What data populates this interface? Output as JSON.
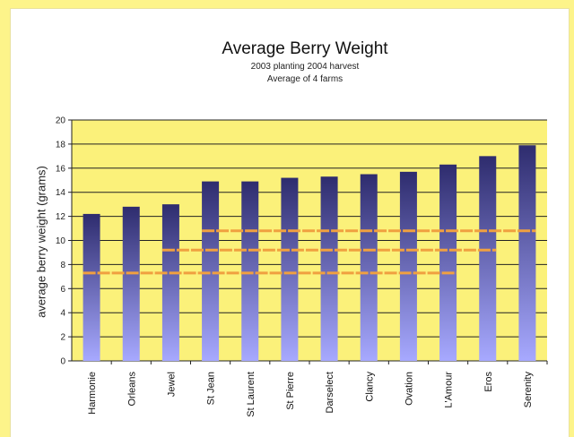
{
  "chart_data": {
    "type": "bar",
    "title": "Average Berry Weight",
    "subtitle": [
      "2003 planting 2004 harvest",
      "Average of 4 farms"
    ],
    "xlabel": "",
    "ylabel": "average berry weight (grams)",
    "ylim": [
      0,
      20
    ],
    "yticks": [
      0,
      2,
      4,
      6,
      8,
      10,
      12,
      14,
      16,
      18,
      20
    ],
    "grid": true,
    "categories": [
      "Harmonie",
      "Orleans",
      "Jewel",
      "St Jean",
      "St Laurent",
      "St Pierre",
      "Darselect",
      "Clancy",
      "Ovation",
      "L'Amour",
      "Eros",
      "Serenity"
    ],
    "values": [
      12.2,
      12.8,
      13.0,
      14.9,
      14.9,
      15.2,
      15.3,
      15.5,
      15.7,
      16.3,
      17.0,
      17.9
    ],
    "reference_lines": [
      {
        "y": 10.8,
        "from": "St Jean",
        "to": "Serenity"
      },
      {
        "y": 9.2,
        "from": "Jewel",
        "to": "Eros"
      },
      {
        "y": 7.3,
        "from": "Harmonie",
        "to": "L'Amour"
      }
    ],
    "colors": {
      "plot_bg": "#fbf17a",
      "bar_top": "#2e2c6e",
      "bar_bottom": "#a7a9ff",
      "gridline": "#222222",
      "reference_line": "#f0a040"
    }
  }
}
